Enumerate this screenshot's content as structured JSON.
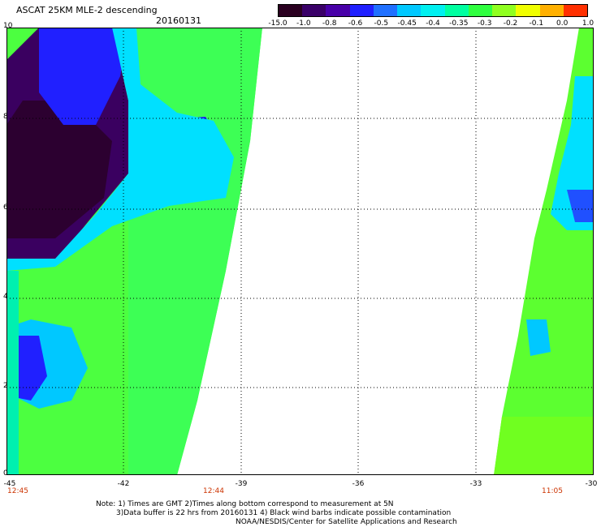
{
  "header": {
    "title": "ASCAT 25KM MLE-2 descending",
    "date": "20160131"
  },
  "colorbar": {
    "labels": [
      "-15.0",
      "-1.0",
      "-0.8",
      "-0.6",
      "-0.5",
      "-0.45",
      "-0.4",
      "-0.35",
      "-0.3",
      "-0.2",
      "-0.1",
      "0.0",
      "1.0"
    ],
    "colors": [
      "#2a0020",
      "#3a0068",
      "#4800a8",
      "#2020ff",
      "#2070ff",
      "#00c8ff",
      "#00f0f0",
      "#00ffa0",
      "#30ff40",
      "#90ff20",
      "#f0ff00",
      "#ffb000",
      "#ff3000"
    ]
  },
  "map": {
    "y_ticks": [
      "10",
      "8",
      "6",
      "4",
      "2",
      "0"
    ],
    "x_ticks": [
      "-45",
      "-42",
      "-39",
      "-36",
      "-33",
      "-30"
    ],
    "times": [
      "12:45",
      "12:44",
      "11:05"
    ]
  },
  "notes": {
    "line1": "Note: 1) Times are GMT 2)Times along bottom correspond to measurement at 5N",
    "line2": "3)Data buffer is 22 hrs from 20160131 4) Black wind barbs indicate possible contamination",
    "line3": "NOAA/NESDIS/Center for Satellite Applications and Research"
  }
}
